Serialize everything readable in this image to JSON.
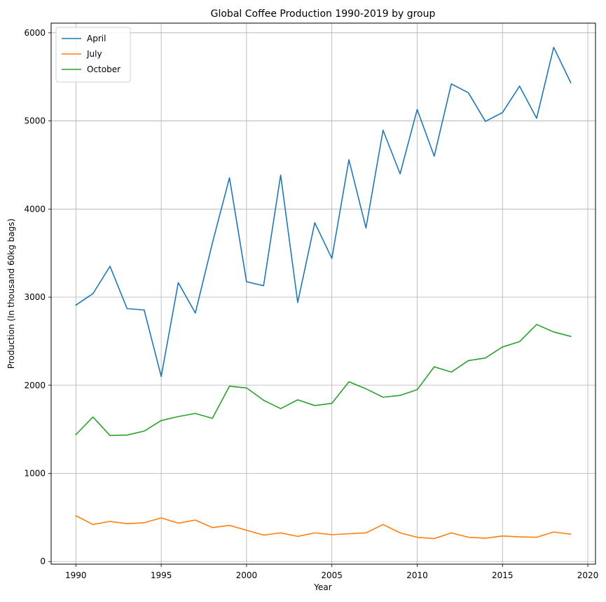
{
  "chart_data": {
    "type": "line",
    "title": "Global Coffee Production 1990-2019 by group",
    "xlabel": "Year",
    "ylabel": "Production (In thousand 60kg bags)",
    "xlim": [
      1988.55,
      2020.45
    ],
    "ylim": [
      -30,
      6110
    ],
    "grid": true,
    "legend_position": "top-left",
    "x_ticks": [
      1990,
      1995,
      2000,
      2005,
      2010,
      2015,
      2020
    ],
    "y_ticks": [
      0,
      1000,
      2000,
      3000,
      4000,
      5000,
      6000
    ],
    "x": [
      1990,
      1991,
      1992,
      1993,
      1994,
      1995,
      1996,
      1997,
      1998,
      1999,
      2000,
      2001,
      2002,
      2003,
      2004,
      2005,
      2006,
      2007,
      2008,
      2009,
      2010,
      2011,
      2012,
      2013,
      2014,
      2015,
      2016,
      2017,
      2018,
      2019
    ],
    "series": [
      {
        "name": "April",
        "color": "#1f77b4",
        "values": [
          2910,
          3040,
          3350,
          2870,
          2855,
          2100,
          3165,
          2820,
          3615,
          4355,
          3175,
          3130,
          4385,
          2940,
          3845,
          3440,
          4560,
          3785,
          4895,
          4400,
          5130,
          4600,
          5420,
          5320,
          4995,
          5095,
          5395,
          5030,
          5835,
          5435
        ]
      },
      {
        "name": "July",
        "color": "#ff7f0e",
        "values": [
          520,
          420,
          455,
          430,
          440,
          495,
          435,
          470,
          385,
          410,
          355,
          300,
          325,
          285,
          325,
          305,
          315,
          325,
          420,
          325,
          275,
          260,
          325,
          275,
          265,
          290,
          280,
          275,
          335,
          310
        ]
      },
      {
        "name": "October",
        "color": "#2ca02c",
        "values": [
          1440,
          1640,
          1430,
          1435,
          1480,
          1600,
          1645,
          1680,
          1625,
          1990,
          1970,
          1830,
          1735,
          1835,
          1770,
          1795,
          2040,
          1960,
          1865,
          1885,
          1950,
          2210,
          2150,
          2280,
          2310,
          2435,
          2495,
          2690,
          2605,
          2555
        ]
      }
    ]
  }
}
